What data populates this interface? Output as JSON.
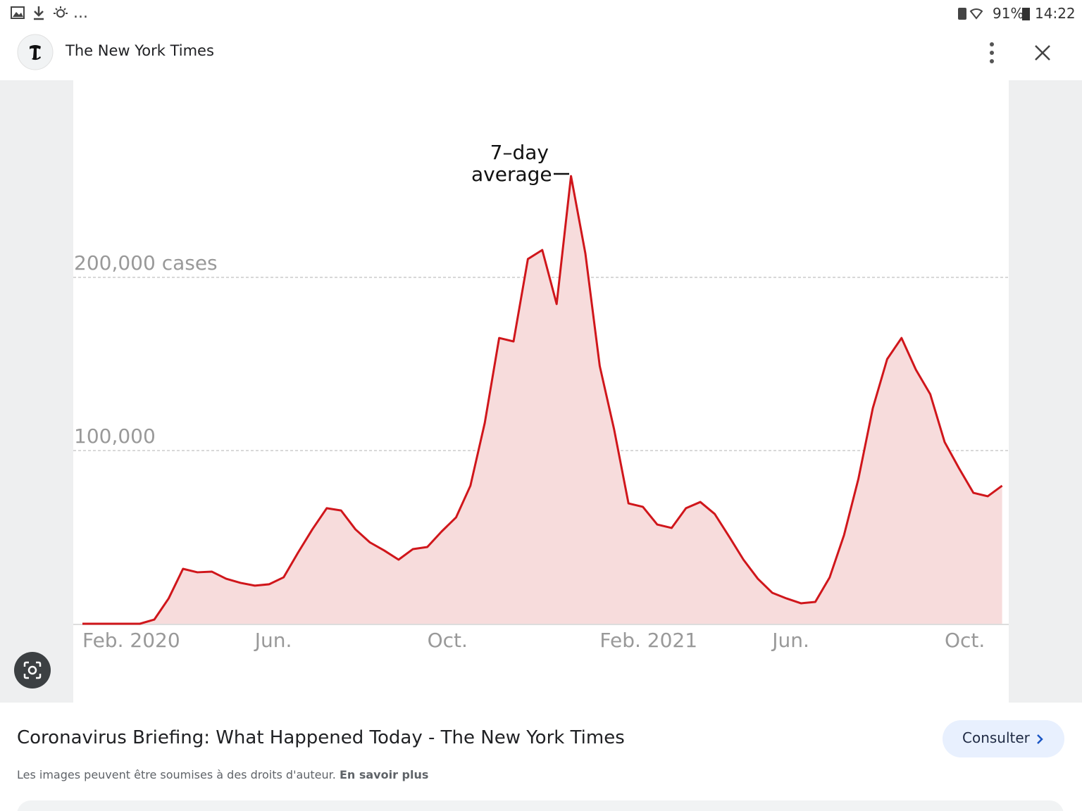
{
  "status_bar": {
    "more": "...",
    "battery": "91%",
    "time": "14:22"
  },
  "header": {
    "title": "The New York Times"
  },
  "chart_data": {
    "type": "area",
    "annotation": "7–day average",
    "categories": [
      "Feb. 2020",
      null,
      null,
      null,
      null,
      null,
      null,
      null,
      null,
      null,
      null,
      null,
      "Jun.",
      null,
      null,
      null,
      null,
      null,
      null,
      null,
      null,
      null,
      null,
      null,
      "Oct.",
      null,
      null,
      null,
      null,
      null,
      null,
      null,
      null,
      null,
      null,
      null,
      "Feb. 2021",
      null,
      null,
      null,
      null,
      null,
      null,
      null,
      null,
      null,
      null,
      null,
      "Jun.",
      null,
      null,
      null,
      null,
      null,
      null,
      null,
      null,
      null,
      null,
      null,
      "Oct.",
      null,
      null,
      null,
      null
    ],
    "values": [
      0,
      0,
      0,
      0,
      0,
      2400,
      14600,
      31700,
      29700,
      30100,
      26000,
      23600,
      22000,
      22800,
      26800,
      41000,
      54500,
      66700,
      65400,
      54500,
      47000,
      42300,
      37000,
      43100,
      44300,
      53300,
      61400,
      79700,
      116000,
      165000,
      163000,
      210600,
      215800,
      184600,
      258500,
      213800,
      148800,
      112200,
      69500,
      67500,
      57300,
      55300,
      66700,
      70300,
      63400,
      50400,
      37000,
      26000,
      17900,
      14600,
      11800,
      12600,
      26800,
      51200,
      83700,
      124400,
      152800,
      165000,
      146700,
      132500,
      104900,
      89800,
      75600,
      73600,
      79700
    ],
    "color": "#d0161b",
    "area_color": "#f7dcdc",
    "ylim": [
      0,
      310000
    ],
    "yticks": [
      {
        "value": 100000,
        "label": "100,000"
      },
      {
        "value": 200000,
        "label": "200,000 cases"
      }
    ],
    "grid": true
  },
  "result": {
    "title": "Coronavirus Briefing: What Happened Today - The New York Times",
    "button": "Consulter",
    "disclaimer": "Les images peuvent être soumises à des droits d'auteur.",
    "learn_more": "En savoir plus"
  }
}
